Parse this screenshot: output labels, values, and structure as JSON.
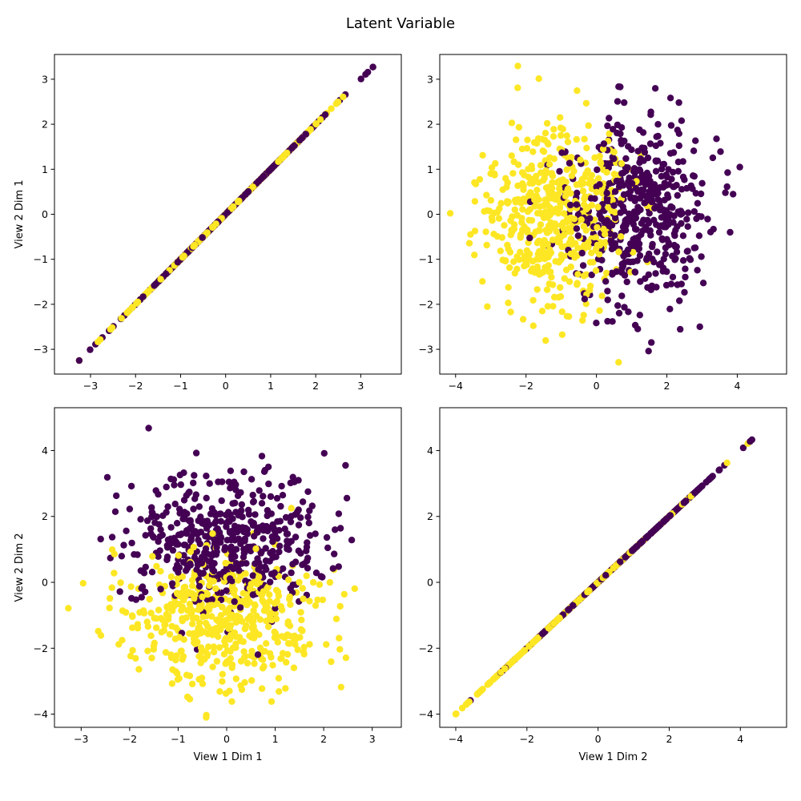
{
  "figure": {
    "title": "Latent Variable"
  },
  "colors": {
    "class_0": "#440154",
    "class_1": "#fde725",
    "axes": "#000000",
    "background": "#ffffff"
  },
  "chart_data": [
    {
      "type": "scatter",
      "panel": "top-left",
      "xlabel": "",
      "ylabel": "View 2 Dim 1",
      "xlim": [
        -3.8,
        3.9
      ],
      "ylim": [
        -3.55,
        3.55
      ],
      "xticks": [
        -3,
        -2,
        -1,
        0,
        1,
        2,
        3
      ],
      "yticks": [
        -3,
        -2,
        -1,
        0,
        1,
        2,
        3
      ],
      "grid": false,
      "relation": "y = x",
      "x_range": [
        -3.25,
        3.27
      ],
      "series": [
        {
          "class": 0,
          "color": "#440154",
          "count": 500
        },
        {
          "class": 1,
          "color": "#fde725",
          "count": 500
        }
      ]
    },
    {
      "type": "scatter",
      "panel": "top-right",
      "xlabel": "",
      "ylabel": "",
      "xlim": [
        -4.45,
        5.4
      ],
      "ylim": [
        -3.55,
        3.55
      ],
      "xticks": [
        -4,
        -2,
        0,
        2,
        4
      ],
      "yticks": [
        -3,
        -2,
        -1,
        0,
        1,
        2,
        3
      ],
      "grid": false,
      "series": [
        {
          "class": 0,
          "color": "#440154",
          "center": [
            1.2,
            0.0
          ],
          "spread": [
            1.0,
            1.0
          ],
          "count": 500
        },
        {
          "class": 1,
          "color": "#fde725",
          "center": [
            -1.2,
            0.0
          ],
          "spread": [
            1.0,
            1.0
          ],
          "count": 500
        }
      ]
    },
    {
      "type": "scatter",
      "panel": "bottom-left",
      "xlabel": "View 1 Dim 1",
      "ylabel": "View 2 Dim 2",
      "xlim": [
        -3.55,
        3.6
      ],
      "ylim": [
        -4.4,
        5.3
      ],
      "xticks": [
        -3,
        -2,
        -1,
        0,
        1,
        2,
        3
      ],
      "yticks": [
        -4,
        -2,
        0,
        2,
        4
      ],
      "grid": false,
      "series": [
        {
          "class": 0,
          "color": "#440154",
          "center": [
            0.0,
            1.2
          ],
          "spread": [
            1.0,
            1.0
          ],
          "count": 500
        },
        {
          "class": 1,
          "color": "#fde725",
          "center": [
            0.0,
            -1.2
          ],
          "spread": [
            1.0,
            1.0
          ],
          "count": 500
        }
      ]
    },
    {
      "type": "scatter",
      "panel": "bottom-right",
      "xlabel": "View 1 Dim 2",
      "ylabel": "",
      "xlim": [
        -4.45,
        5.3
      ],
      "ylim": [
        -4.4,
        5.3
      ],
      "xticks": [
        -4,
        -2,
        0,
        2,
        4
      ],
      "yticks": [
        -4,
        -2,
        0,
        2,
        4
      ],
      "grid": false,
      "relation": "y = x",
      "x_range": [
        -4.0,
        4.85
      ],
      "series": [
        {
          "class": 0,
          "color": "#440154",
          "count": 500
        },
        {
          "class": 1,
          "color": "#fde725",
          "count": 500
        }
      ]
    }
  ]
}
